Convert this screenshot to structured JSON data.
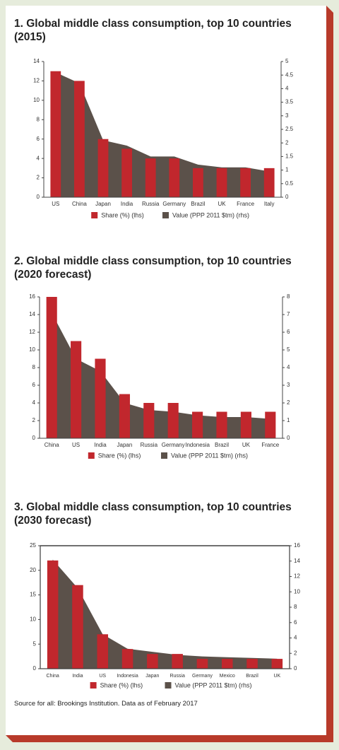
{
  "chart_data": [
    {
      "type": "combo",
      "title": "1. Global middle class consumption, top 10 countries (2015)",
      "categories": [
        "US",
        "China",
        "Japan",
        "India",
        "Russia",
        "Germany",
        "Brazil",
        "UK",
        "France",
        "Italy"
      ],
      "series": [
        {
          "name": "Share (%) (lhs)",
          "type": "bar",
          "color": "#c1272d",
          "values": [
            13,
            12,
            6,
            5,
            4,
            4,
            3,
            3,
            3,
            3
          ]
        },
        {
          "name": "Value (PPP 2011 $tm) (rhs)",
          "type": "area",
          "axis": "y2",
          "color": "#5b514a",
          "values": [
            4.6,
            4.2,
            2.1,
            1.9,
            1.5,
            1.5,
            1.2,
            1.1,
            1.1,
            0.95
          ]
        }
      ],
      "ylim": [
        0,
        14
      ],
      "yticks": [
        0,
        2,
        4,
        6,
        8,
        10,
        12,
        14
      ],
      "y2lim": [
        0,
        5
      ],
      "y2ticks": [
        0,
        0.5,
        1,
        1.5,
        2,
        2.5,
        3,
        3.5,
        4,
        4.5,
        5
      ],
      "frame": false
    },
    {
      "type": "combo",
      "title": "2. Global middle class consumption, top 10 countries (2020 forecast)",
      "categories": [
        "China",
        "US",
        "India",
        "Japan",
        "Russia",
        "Germany",
        "Indonesia",
        "Brazil",
        "UK",
        "France"
      ],
      "series": [
        {
          "name": "Share (%) (lhs)",
          "type": "bar",
          "color": "#c1272d",
          "values": [
            16,
            11,
            9,
            5,
            4,
            4,
            3,
            3,
            3,
            3
          ]
        },
        {
          "name": "Value (PPP 2011 $tm) (rhs)",
          "type": "area",
          "axis": "y2",
          "color": "#5b514a",
          "values": [
            7.1,
            4.5,
            3.8,
            2.0,
            1.6,
            1.5,
            1.3,
            1.2,
            1.2,
            1.1
          ]
        }
      ],
      "ylim": [
        0,
        16
      ],
      "yticks": [
        0,
        2,
        4,
        6,
        8,
        10,
        12,
        14,
        16
      ],
      "y2lim": [
        0,
        8
      ],
      "y2ticks": [
        0,
        1,
        2,
        3,
        4,
        5,
        6,
        7,
        8
      ],
      "frame": false
    },
    {
      "type": "combo",
      "title": "3. Global middle class consumption, top 10 countries (2030 forecast)",
      "categories": [
        "China",
        "India",
        "US",
        "Indonesia",
        "Japan",
        "Russia",
        "Germany",
        "Mexico",
        "Brazil",
        "UK"
      ],
      "series": [
        {
          "name": "Share (%) (lhs)",
          "type": "bar",
          "color": "#c1272d",
          "values": [
            22,
            17,
            7,
            4,
            3,
            3,
            2,
            2,
            2,
            2
          ]
        },
        {
          "name": "Value (PPP 2011 $tm) (rhs)",
          "type": "area",
          "axis": "y2",
          "color": "#5b514a",
          "values": [
            14.2,
            10.5,
            4.5,
            2.6,
            2.2,
            1.8,
            1.6,
            1.5,
            1.4,
            1.3
          ]
        }
      ],
      "ylim": [
        0,
        25
      ],
      "yticks": [
        0,
        5,
        10,
        15,
        20,
        25
      ],
      "y2lim": [
        0,
        16
      ],
      "y2ticks": [
        0,
        2,
        4,
        6,
        8,
        10,
        12,
        14,
        16
      ],
      "frame": true
    }
  ],
  "footer": {
    "source": "Source for all: Brookings Institution. Data as of February 2017"
  }
}
